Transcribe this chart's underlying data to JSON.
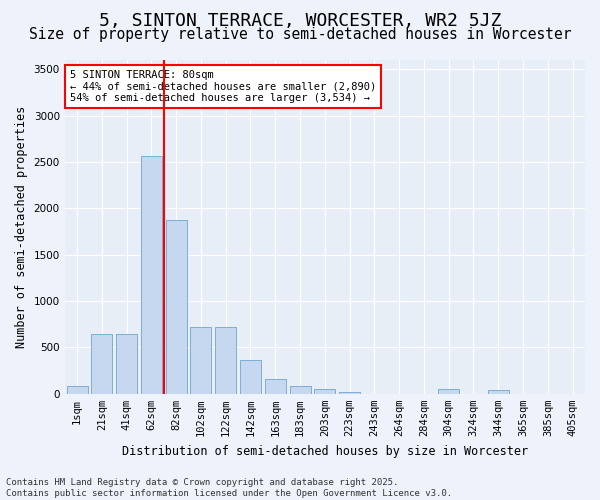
{
  "title": "5, SINTON TERRACE, WORCESTER, WR2 5JZ",
  "subtitle": "Size of property relative to semi-detached houses in Worcester",
  "xlabel": "Distribution of semi-detached houses by size in Worcester",
  "ylabel": "Number of semi-detached properties",
  "categories": [
    "1sqm",
    "21sqm",
    "41sqm",
    "62sqm",
    "82sqm",
    "102sqm",
    "122sqm",
    "142sqm",
    "163sqm",
    "183sqm",
    "203sqm",
    "223sqm",
    "243sqm",
    "264sqm",
    "284sqm",
    "304sqm",
    "324sqm",
    "344sqm",
    "365sqm",
    "385sqm",
    "405sqm"
  ],
  "values": [
    80,
    650,
    650,
    2570,
    1870,
    720,
    720,
    360,
    160,
    80,
    50,
    20,
    0,
    0,
    0,
    50,
    0,
    40,
    0,
    0,
    0
  ],
  "bar_color": "#c5d8f0",
  "bar_edge_color": "#7bafd4",
  "vline_pos": 3.5,
  "vline_color": "red",
  "annotation_text": "5 SINTON TERRACE: 80sqm\n← 44% of semi-detached houses are smaller (2,890)\n54% of semi-detached houses are larger (3,534) →",
  "ylim": [
    0,
    3600
  ],
  "yticks": [
    0,
    500,
    1000,
    1500,
    2000,
    2500,
    3000,
    3500
  ],
  "footer": "Contains HM Land Registry data © Crown copyright and database right 2025.\nContains public sector information licensed under the Open Government Licence v3.0.",
  "bg_color": "#edf2fb",
  "plot_bg_color": "#e8eef8",
  "title_fontsize": 13,
  "subtitle_fontsize": 10.5,
  "axis_label_fontsize": 8.5,
  "tick_fontsize": 7.5,
  "footer_fontsize": 6.5
}
